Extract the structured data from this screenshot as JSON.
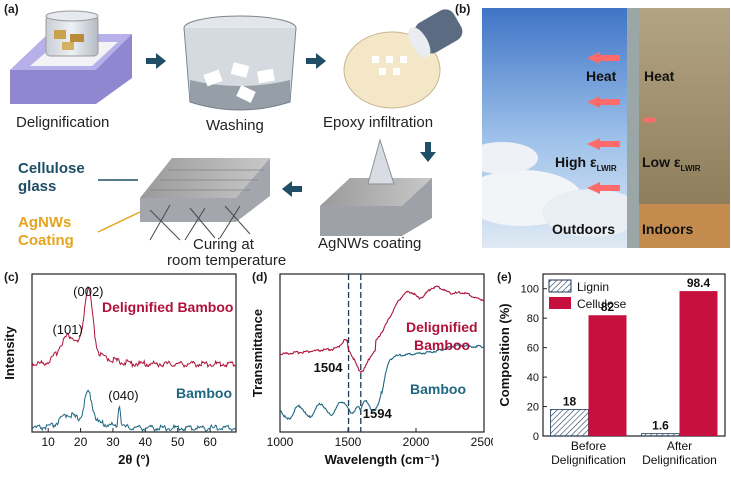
{
  "panel_a": {
    "label": "(a)",
    "steps": {
      "delignification": "Delignification",
      "washing": "Washing",
      "epoxy": "Epoxy infiltration",
      "agnws": "AgNWs coating",
      "curing_line1": "Curing at",
      "curing_line2": "room temperature"
    },
    "cellulose_glass_line1": "Cellulose",
    "cellulose_glass_line2": "glass",
    "agnws_coating_line1": "AgNWs",
    "agnws_coating_line2": "Coating"
  },
  "panel_b": {
    "label": "(b)",
    "heat_out": "Heat",
    "heat_in": "Heat",
    "high_eps": "High ε",
    "low_eps": "Low ε",
    "subscript": "LWIR",
    "outdoors": "Outdoors",
    "indoors": "Indoors"
  },
  "panel_c": {
    "label": "(c)",
    "chart_data": {
      "type": "line",
      "xlabel": "2θ (°)",
      "ylabel": "Intensity",
      "xlim": [
        5,
        68
      ],
      "x_ticks": [
        "10",
        "20",
        "30",
        "40",
        "50",
        "60"
      ],
      "series": [
        {
          "name": "Delignified Bamboo",
          "color": "#b0123a",
          "peaks": [
            {
              "x": 16,
              "label": "(101)"
            },
            {
              "x": 22.4,
              "label": "(002)"
            }
          ]
        },
        {
          "name": "Bamboo",
          "color": "#1f6680",
          "peaks": [
            {
              "x": 22.4
            },
            {
              "x": 32,
              "label": "(040)"
            }
          ]
        }
      ]
    }
  },
  "panel_d": {
    "label": "(d)",
    "chart_data": {
      "type": "line",
      "xlabel": "Wavelength (cm⁻¹)",
      "ylabel": "Transmittance",
      "xlim": [
        1000,
        2500
      ],
      "x_ticks": [
        "1000",
        "1500",
        "2000",
        "2500"
      ],
      "markers": [
        "1504",
        "1594"
      ],
      "series": [
        {
          "name_line1": "Delignified",
          "name_line2": "Bamboo",
          "color": "#b0123a"
        },
        {
          "name": "Bamboo",
          "color": "#1f6680"
        }
      ]
    }
  },
  "panel_e": {
    "label": "(e)",
    "chart_data": {
      "type": "bar",
      "ylabel": "Composition (%)",
      "ylim": [
        0,
        110
      ],
      "y_ticks": [
        "0",
        "20",
        "40",
        "60",
        "80",
        "100"
      ],
      "categories": [
        {
          "line1": "Before",
          "line2": "Delignification"
        },
        {
          "line1": "After",
          "line2": "Delignification"
        }
      ],
      "series": [
        {
          "name": "Lignin",
          "values": [
            18,
            1.6
          ],
          "labels": [
            "18",
            "1.6"
          ],
          "pattern": "hatched"
        },
        {
          "name": "Cellulose",
          "values": [
            82,
            98.4
          ],
          "labels": [
            "82",
            "98.4"
          ],
          "color": "#c8103e"
        }
      ]
    }
  }
}
